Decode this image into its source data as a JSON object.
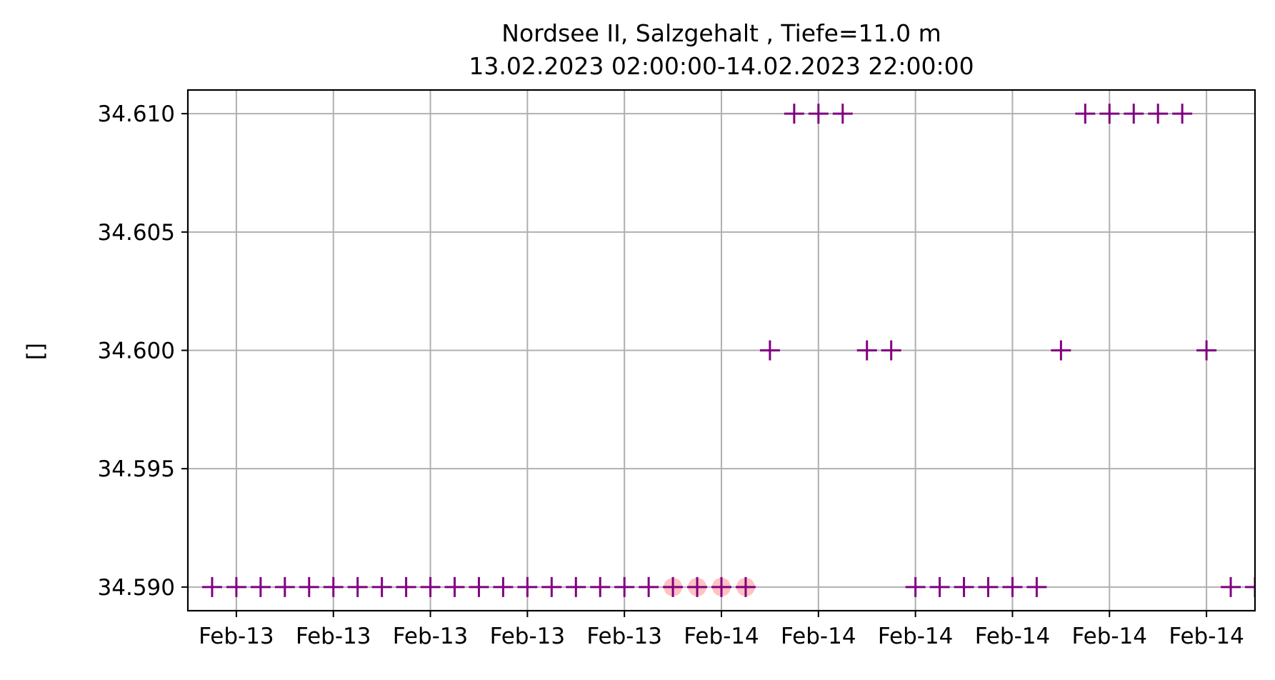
{
  "chart_data": {
    "type": "scatter",
    "title": "Nordsee II, Salzgehalt , Tiefe=11.0 m",
    "subtitle": "13.02.2023 02:00:00-14.02.2023 22:00:00",
    "xlabel": "",
    "ylabel": "[]",
    "x_ticks": [
      {
        "time": "2023-02-13 04:00",
        "label": "Feb-13"
      },
      {
        "time": "2023-02-13 08:00",
        "label": "Feb-13"
      },
      {
        "time": "2023-02-13 12:00",
        "label": "Feb-13"
      },
      {
        "time": "2023-02-13 16:00",
        "label": "Feb-13"
      },
      {
        "time": "2023-02-13 20:00",
        "label": "Feb-13"
      },
      {
        "time": "2023-02-14 00:00",
        "label": "Feb-14"
      },
      {
        "time": "2023-02-14 04:00",
        "label": "Feb-14"
      },
      {
        "time": "2023-02-14 08:00",
        "label": "Feb-14"
      },
      {
        "time": "2023-02-14 12:00",
        "label": "Feb-14"
      },
      {
        "time": "2023-02-14 16:00",
        "label": "Feb-14"
      },
      {
        "time": "2023-02-14 20:00",
        "label": "Feb-14"
      }
    ],
    "y_ticks": [
      34.59,
      34.595,
      34.6,
      34.605,
      34.61
    ],
    "y_tick_labels": [
      "34.590",
      "34.595",
      "34.600",
      "34.605",
      "34.610"
    ],
    "xlim": [
      "2023-02-13 02:00",
      "2023-02-14 22:00"
    ],
    "ylim": [
      34.589,
      34.611
    ],
    "grid": true,
    "marker": "+",
    "marker_color": "#800080",
    "flag_color": "#ff9999",
    "series": [
      {
        "points": [
          {
            "t": "2023-02-13 03:00",
            "v": 34.59
          },
          {
            "t": "2023-02-13 04:00",
            "v": 34.59
          },
          {
            "t": "2023-02-13 05:00",
            "v": 34.59
          },
          {
            "t": "2023-02-13 06:00",
            "v": 34.59
          },
          {
            "t": "2023-02-13 07:00",
            "v": 34.59
          },
          {
            "t": "2023-02-13 08:00",
            "v": 34.59
          },
          {
            "t": "2023-02-13 09:00",
            "v": 34.59
          },
          {
            "t": "2023-02-13 10:00",
            "v": 34.59
          },
          {
            "t": "2023-02-13 11:00",
            "v": 34.59
          },
          {
            "t": "2023-02-13 12:00",
            "v": 34.59
          },
          {
            "t": "2023-02-13 13:00",
            "v": 34.59
          },
          {
            "t": "2023-02-13 14:00",
            "v": 34.59
          },
          {
            "t": "2023-02-13 15:00",
            "v": 34.59
          },
          {
            "t": "2023-02-13 16:00",
            "v": 34.59
          },
          {
            "t": "2023-02-13 17:00",
            "v": 34.59
          },
          {
            "t": "2023-02-13 18:00",
            "v": 34.59
          },
          {
            "t": "2023-02-13 19:00",
            "v": 34.59
          },
          {
            "t": "2023-02-13 20:00",
            "v": 34.59
          },
          {
            "t": "2023-02-13 21:00",
            "v": 34.59
          },
          {
            "t": "2023-02-13 22:00",
            "v": 34.59,
            "flagged": true
          },
          {
            "t": "2023-02-13 23:00",
            "v": 34.59,
            "flagged": true
          },
          {
            "t": "2023-02-14 00:00",
            "v": 34.59,
            "flagged": true
          },
          {
            "t": "2023-02-14 01:00",
            "v": 34.59,
            "flagged": true
          },
          {
            "t": "2023-02-14 02:00",
            "v": 34.6
          },
          {
            "t": "2023-02-14 03:00",
            "v": 34.61
          },
          {
            "t": "2023-02-14 04:00",
            "v": 34.61
          },
          {
            "t": "2023-02-14 05:00",
            "v": 34.61
          },
          {
            "t": "2023-02-14 06:00",
            "v": 34.6
          },
          {
            "t": "2023-02-14 07:00",
            "v": 34.6
          },
          {
            "t": "2023-02-14 08:00",
            "v": 34.59
          },
          {
            "t": "2023-02-14 09:00",
            "v": 34.59
          },
          {
            "t": "2023-02-14 10:00",
            "v": 34.59
          },
          {
            "t": "2023-02-14 11:00",
            "v": 34.59
          },
          {
            "t": "2023-02-14 12:00",
            "v": 34.59
          },
          {
            "t": "2023-02-14 13:00",
            "v": 34.59
          },
          {
            "t": "2023-02-14 14:00",
            "v": 34.6
          },
          {
            "t": "2023-02-14 15:00",
            "v": 34.61
          },
          {
            "t": "2023-02-14 16:00",
            "v": 34.61
          },
          {
            "t": "2023-02-14 17:00",
            "v": 34.61
          },
          {
            "t": "2023-02-14 18:00",
            "v": 34.61
          },
          {
            "t": "2023-02-14 19:00",
            "v": 34.61
          },
          {
            "t": "2023-02-14 20:00",
            "v": 34.6
          },
          {
            "t": "2023-02-14 21:00",
            "v": 34.59
          },
          {
            "t": "2023-02-14 22:00",
            "v": 34.59
          }
        ]
      }
    ]
  }
}
